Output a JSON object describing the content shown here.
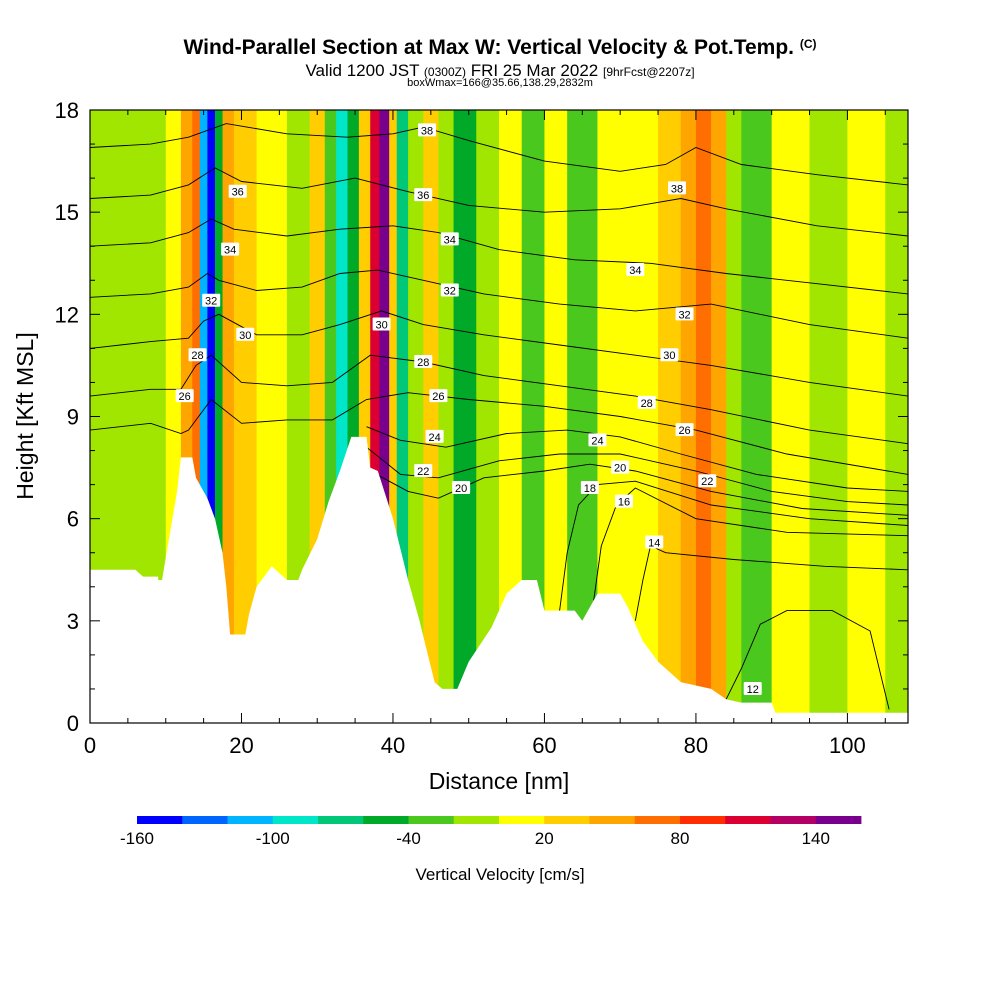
{
  "chart_data": {
    "type": "heatmap",
    "title": "Wind-Parallel Section at Max W: Vertical Velocity & Pot.Temp.",
    "title_mark": "(C)",
    "subtitle_main": "Valid 1200 JST",
    "subtitle_utc": "(0300Z)",
    "subtitle_date": "FRI 25 Mar 2022",
    "subtitle_fcst": "[9hrFcst@2207z]",
    "info_line": "boxWmax=166@35.66,138.29,2832m",
    "xlabel": "Distance [nm]",
    "ylabel": "Height [Kft MSL]",
    "xlim": [
      0,
      108
    ],
    "ylim": [
      0,
      18
    ],
    "x_ticks": [
      "0",
      "20",
      "40",
      "60",
      "80",
      "100"
    ],
    "y_ticks": [
      "0",
      "3",
      "6",
      "9",
      "12",
      "15",
      "18"
    ],
    "colorbar": {
      "title": "Vertical Velocity [cm/s]",
      "min": -160,
      "max": 160,
      "step": 20,
      "labels": [
        "-160",
        "-100",
        "-40",
        "20",
        "80",
        "140"
      ],
      "colors": [
        "#0000ff",
        "#0064ff",
        "#00b4ff",
        "#00e6c8",
        "#00c878",
        "#00aa28",
        "#4bc81e",
        "#a0e600",
        "#ffff00",
        "#ffcd00",
        "#ffa500",
        "#ff6e00",
        "#ff2d00",
        "#dc0032",
        "#b40064",
        "#78008c"
      ]
    },
    "velocity_bands": [
      {
        "x": 0,
        "w": -10
      },
      {
        "x": 5,
        "w": -5
      },
      {
        "x": 10,
        "w": 10
      },
      {
        "x": 12,
        "w": 40
      },
      {
        "x": 13.5,
        "w": 70
      },
      {
        "x": 14.5,
        "w": -120
      },
      {
        "x": 15.5,
        "w": -160
      },
      {
        "x": 16.5,
        "w": -60
      },
      {
        "x": 17.5,
        "w": 50
      },
      {
        "x": 19,
        "w": 30
      },
      {
        "x": 22,
        "w": 10
      },
      {
        "x": 26,
        "w": -10
      },
      {
        "x": 29,
        "w": 20
      },
      {
        "x": 31,
        "w": -30
      },
      {
        "x": 32.5,
        "w": -90
      },
      {
        "x": 34,
        "w": -60
      },
      {
        "x": 35.5,
        "w": 30
      },
      {
        "x": 37,
        "w": 110
      },
      {
        "x": 38.2,
        "w": 150
      },
      {
        "x": 39.5,
        "w": 30
      },
      {
        "x": 40.5,
        "w": -80
      },
      {
        "x": 42,
        "w": -20
      },
      {
        "x": 44,
        "w": 30
      },
      {
        "x": 46,
        "w": -10
      },
      {
        "x": 48,
        "w": -50
      },
      {
        "x": 51,
        "w": -20
      },
      {
        "x": 54,
        "w": 0
      },
      {
        "x": 57,
        "w": -40
      },
      {
        "x": 60,
        "w": 10
      },
      {
        "x": 63,
        "w": -30
      },
      {
        "x": 67,
        "w": 0
      },
      {
        "x": 71,
        "w": 10
      },
      {
        "x": 75,
        "w": 20
      },
      {
        "x": 78,
        "w": 50
      },
      {
        "x": 80,
        "w": 70
      },
      {
        "x": 82,
        "w": 40
      },
      {
        "x": 84,
        "w": -10
      },
      {
        "x": 86,
        "w": -30
      },
      {
        "x": 90,
        "w": 0
      },
      {
        "x": 95,
        "w": -10
      },
      {
        "x": 100,
        "w": 10
      },
      {
        "x": 105,
        "w": -10
      },
      {
        "x": 108,
        "w": 10
      }
    ],
    "terrain": [
      [
        0,
        4.5
      ],
      [
        6,
        4.5
      ],
      [
        7,
        4.3
      ],
      [
        9,
        4.3
      ],
      [
        9,
        4.2
      ],
      [
        9.5,
        4.2
      ],
      [
        10.5,
        5.5
      ],
      [
        11.5,
        6.8
      ],
      [
        12,
        7.8
      ],
      [
        13.5,
        7.8
      ],
      [
        14,
        7.2
      ],
      [
        15.5,
        6.6
      ],
      [
        16.5,
        6.0
      ],
      [
        17.5,
        5.0
      ],
      [
        18,
        4.0
      ],
      [
        18.5,
        2.6
      ],
      [
        20.5,
        2.6
      ],
      [
        21,
        3.2
      ],
      [
        22,
        4.0
      ],
      [
        24,
        4.6
      ],
      [
        26,
        4.2
      ],
      [
        27.5,
        4.2
      ],
      [
        28,
        4.5
      ],
      [
        30,
        5.4
      ],
      [
        31.5,
        6.5
      ],
      [
        33,
        7.4
      ],
      [
        34.5,
        8.4
      ],
      [
        36.5,
        8.4
      ],
      [
        37,
        7.5
      ],
      [
        38,
        7.4
      ],
      [
        40,
        6.0
      ],
      [
        42,
        4.2
      ],
      [
        43.5,
        3.0
      ],
      [
        45.5,
        1.2
      ],
      [
        46.5,
        1.0
      ],
      [
        48.5,
        1.0
      ],
      [
        50,
        1.8
      ],
      [
        53,
        2.8
      ],
      [
        55,
        3.8
      ],
      [
        57,
        4.2
      ],
      [
        59,
        4.2
      ],
      [
        60,
        3.3
      ],
      [
        64,
        3.3
      ],
      [
        65,
        3.0
      ],
      [
        67,
        3.8
      ],
      [
        70,
        3.8
      ],
      [
        71,
        3.4
      ],
      [
        73,
        2.4
      ],
      [
        75,
        1.8
      ],
      [
        77,
        1.4
      ],
      [
        78,
        1.2
      ],
      [
        80,
        1.1
      ],
      [
        82,
        1.0
      ],
      [
        84,
        0.7
      ],
      [
        86,
        0.6
      ],
      [
        90,
        0.6
      ],
      [
        90.5,
        0.3
      ],
      [
        108,
        0.3
      ]
    ],
    "theta_contours": [
      {
        "theta": 12,
        "label": "12",
        "lx": 87.5,
        "pts": [
          [
            84,
            0.7
          ],
          [
            86,
            1.6
          ],
          [
            88.5,
            2.9
          ],
          [
            92,
            3.3
          ],
          [
            98,
            3.3
          ],
          [
            103,
            2.7
          ],
          [
            105.5,
            0.4
          ]
        ]
      },
      {
        "theta": 14,
        "label": "14",
        "lx": 74.5,
        "pts": [
          [
            72,
            3.0
          ],
          [
            73,
            4.2
          ],
          [
            74,
            5.2
          ],
          [
            76,
            5.0
          ],
          [
            85,
            4.8
          ],
          [
            97,
            4.6
          ],
          [
            108,
            4.5
          ]
        ]
      },
      {
        "theta": 16,
        "label": "16",
        "lx": 70.5,
        "pts": [
          [
            66.5,
            3.6
          ],
          [
            67.5,
            5.2
          ],
          [
            69.5,
            6.4
          ],
          [
            72,
            6.9
          ],
          [
            80,
            6.0
          ],
          [
            92,
            5.6
          ],
          [
            108,
            5.5
          ]
        ]
      },
      {
        "theta": 18,
        "label": "18",
        "lx": 66,
        "pts": [
          [
            62,
            3.3
          ],
          [
            63,
            5.0
          ],
          [
            64.5,
            6.4
          ],
          [
            67,
            7.0
          ],
          [
            72,
            7.1
          ],
          [
            82,
            6.4
          ],
          [
            95,
            6.0
          ],
          [
            108,
            5.8
          ]
        ]
      },
      {
        "theta": 20,
        "label": "20",
        "lx": 48.5,
        "pts": [
          [
            37,
            7.4
          ],
          [
            42,
            6.8
          ],
          [
            46,
            6.6
          ],
          [
            52,
            7.2
          ],
          [
            60,
            7.4
          ],
          [
            66,
            7.6
          ],
          [
            72,
            7.4
          ],
          [
            82,
            6.8
          ],
          [
            94,
            6.3
          ],
          [
            108,
            6.1
          ]
        ]
      },
      {
        "theta": 22,
        "label": "22",
        "lx": 88,
        "pts": [
          [
            36.5,
            8.1
          ],
          [
            41,
            7.3
          ],
          [
            46,
            7.2
          ],
          [
            54,
            7.7
          ],
          [
            62,
            7.9
          ],
          [
            70,
            7.9
          ],
          [
            80,
            7.4
          ],
          [
            90,
            6.8
          ],
          [
            100,
            6.5
          ],
          [
            108,
            6.4
          ]
        ]
      },
      {
        "theta": 24,
        "label": "24",
        "lx": 45.5,
        "pts": [
          [
            36.5,
            8.7
          ],
          [
            41,
            8.3
          ],
          [
            47,
            8.1
          ],
          [
            55,
            8.5
          ],
          [
            63,
            8.6
          ],
          [
            70,
            8.4
          ],
          [
            78,
            7.9
          ],
          [
            88,
            7.3
          ],
          [
            100,
            6.9
          ],
          [
            108,
            6.8
          ]
        ]
      },
      {
        "theta": 26,
        "label": "26",
        "lx": 79,
        "pts": [
          [
            0,
            8.6
          ],
          [
            8,
            8.8
          ],
          [
            12,
            8.5
          ],
          [
            13,
            8.6
          ],
          [
            16,
            9.5
          ],
          [
            20,
            8.8
          ],
          [
            26,
            8.9
          ],
          [
            32,
            8.9
          ],
          [
            36.5,
            9.5
          ],
          [
            42,
            9.7
          ],
          [
            50,
            9.5
          ],
          [
            60,
            9.3
          ],
          [
            70,
            9.0
          ],
          [
            80,
            8.6
          ],
          [
            92,
            7.9
          ],
          [
            108,
            7.3
          ]
        ]
      },
      {
        "theta": 28,
        "label": "28",
        "lx": 73.5,
        "pts": [
          [
            0,
            9.6
          ],
          [
            8,
            9.8
          ],
          [
            12,
            9.8
          ],
          [
            14,
            10.5
          ],
          [
            16,
            10.8
          ],
          [
            20,
            10.0
          ],
          [
            26,
            9.9
          ],
          [
            32,
            10.0
          ],
          [
            37,
            10.8
          ],
          [
            44,
            10.6
          ],
          [
            52,
            10.2
          ],
          [
            62,
            9.9
          ],
          [
            72,
            9.6
          ],
          [
            82,
            9.2
          ],
          [
            95,
            8.6
          ],
          [
            108,
            8.2
          ]
        ]
      },
      {
        "theta": 30,
        "label": "30",
        "lx": 76.5,
        "pts": [
          [
            0,
            11.0
          ],
          [
            8,
            11.2
          ],
          [
            13,
            11.3
          ],
          [
            15,
            11.8
          ],
          [
            17,
            12.0
          ],
          [
            22,
            11.4
          ],
          [
            28,
            11.4
          ],
          [
            33,
            11.7
          ],
          [
            38.5,
            12.1
          ],
          [
            44,
            11.7
          ],
          [
            52,
            11.4
          ],
          [
            62,
            11.1
          ],
          [
            72,
            10.8
          ],
          [
            82,
            10.5
          ],
          [
            95,
            10.0
          ],
          [
            108,
            9.6
          ]
        ]
      },
      {
        "theta": 32,
        "label": "32",
        "lx": 78.5,
        "pts": [
          [
            0,
            12.5
          ],
          [
            8,
            12.6
          ],
          [
            13,
            12.8
          ],
          [
            15.5,
            13.2
          ],
          [
            17,
            13.0
          ],
          [
            22,
            12.7
          ],
          [
            28,
            12.8
          ],
          [
            33,
            13.2
          ],
          [
            38,
            13.3
          ],
          [
            44,
            13.0
          ],
          [
            52,
            12.6
          ],
          [
            62,
            12.3
          ],
          [
            72,
            12.1
          ],
          [
            82,
            12.3
          ],
          [
            95,
            11.7
          ],
          [
            108,
            11.3
          ]
        ]
      },
      {
        "theta": 34,
        "label": "34",
        "lx": 72.5,
        "pts": [
          [
            0,
            14.0
          ],
          [
            8,
            14.1
          ],
          [
            13,
            14.4
          ],
          [
            16,
            14.8
          ],
          [
            19,
            14.5
          ],
          [
            26,
            14.3
          ],
          [
            33,
            14.5
          ],
          [
            40,
            14.6
          ],
          [
            46,
            14.4
          ],
          [
            54,
            13.9
          ],
          [
            64,
            13.6
          ],
          [
            74,
            13.5
          ],
          [
            84,
            13.2
          ],
          [
            96,
            12.9
          ],
          [
            108,
            12.6
          ]
        ]
      },
      {
        "theta": 36,
        "label": "36",
        "lx": 44.5,
        "pts": [
          [
            0,
            15.4
          ],
          [
            8,
            15.5
          ],
          [
            13,
            15.8
          ],
          [
            16.5,
            16.3
          ],
          [
            20,
            15.9
          ],
          [
            28,
            15.7
          ],
          [
            35,
            16.0
          ],
          [
            42,
            15.6
          ],
          [
            50,
            15.2
          ],
          [
            60,
            15.0
          ],
          [
            70,
            15.1
          ],
          [
            78,
            15.4
          ],
          [
            84,
            15.1
          ],
          [
            96,
            14.6
          ],
          [
            108,
            14.3
          ]
        ]
      },
      {
        "theta": 38,
        "label": "38",
        "lx": 77.5,
        "pts": [
          [
            0,
            16.9
          ],
          [
            8,
            17.0
          ],
          [
            13,
            17.2
          ],
          [
            18,
            17.6
          ],
          [
            26,
            17.3
          ],
          [
            34,
            17.2
          ],
          [
            40,
            17.3
          ],
          [
            44,
            17.5
          ],
          [
            50,
            17.1
          ],
          [
            60,
            16.5
          ],
          [
            70,
            16.2
          ],
          [
            76,
            16.4
          ],
          [
            80,
            16.9
          ],
          [
            86,
            16.4
          ],
          [
            96,
            16.1
          ],
          [
            108,
            15.8
          ]
        ]
      }
    ],
    "theta_label_positions": [
      {
        "label": "26",
        "x": 12.5,
        "y": 9.6
      },
      {
        "label": "28",
        "x": 14.2,
        "y": 10.8
      },
      {
        "label": "30",
        "x": 20.5,
        "y": 11.4
      },
      {
        "label": "32",
        "x": 16,
        "y": 12.4
      },
      {
        "label": "34",
        "x": 18.5,
        "y": 13.9
      },
      {
        "label": "36",
        "x": 19.5,
        "y": 15.6
      },
      {
        "label": "38",
        "x": 44.5,
        "y": 17.4
      },
      {
        "label": "36",
        "x": 44,
        "y": 15.5
      },
      {
        "label": "34",
        "x": 47.5,
        "y": 14.2
      },
      {
        "label": "32",
        "x": 47.5,
        "y": 12.7
      },
      {
        "label": "30",
        "x": 38.5,
        "y": 11.7
      },
      {
        "label": "28",
        "x": 44,
        "y": 10.6
      },
      {
        "label": "26",
        "x": 46,
        "y": 9.6
      },
      {
        "label": "24",
        "x": 45.5,
        "y": 8.4
      },
      {
        "label": "22",
        "x": 44,
        "y": 7.4
      },
      {
        "label": "20",
        "x": 49,
        "y": 6.9
      },
      {
        "label": "34",
        "x": 72,
        "y": 13.3
      },
      {
        "label": "32",
        "x": 78.5,
        "y": 12.0
      },
      {
        "label": "30",
        "x": 76.5,
        "y": 10.8
      },
      {
        "label": "28",
        "x": 73.5,
        "y": 9.4
      },
      {
        "label": "26",
        "x": 78.5,
        "y": 8.6
      },
      {
        "label": "24",
        "x": 67,
        "y": 8.3
      },
      {
        "label": "22",
        "x": 81.5,
        "y": 7.1
      },
      {
        "label": "20",
        "x": 70,
        "y": 7.5
      },
      {
        "label": "18",
        "x": 66,
        "y": 6.9
      },
      {
        "label": "16",
        "x": 70.5,
        "y": 6.5
      },
      {
        "label": "14",
        "x": 74.5,
        "y": 5.3
      },
      {
        "label": "12",
        "x": 87.5,
        "y": 1.0
      },
      {
        "label": "38",
        "x": 77.5,
        "y": 15.7
      }
    ]
  }
}
